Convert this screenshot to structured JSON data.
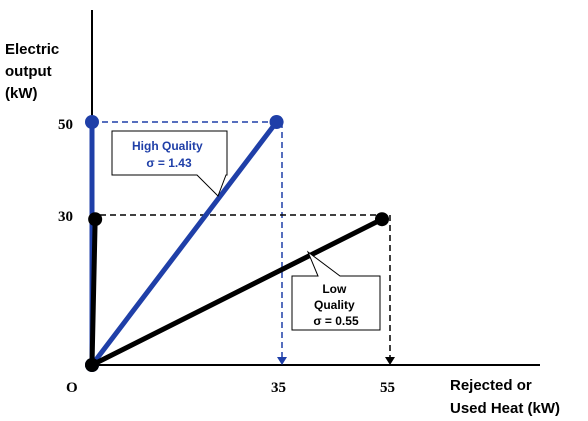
{
  "chart_data": {
    "type": "line",
    "ylabel": [
      "Electric",
      "output",
      "(kW)"
    ],
    "xlabel": [
      "Rejected or",
      "Used Heat (kW)"
    ],
    "origin_label": "O",
    "x_ticks": [
      35,
      55
    ],
    "y_ticks": [
      50,
      30
    ],
    "series": [
      {
        "color": "#1f3fa8",
        "points": [
          [
            0,
            0
          ],
          [
            0,
            50
          ],
          [
            35,
            50
          ]
        ],
        "callout": [
          "High Quality",
          "σ = 1.43"
        ],
        "callout_color": "#1f3fa8"
      },
      {
        "color": "#000000",
        "points": [
          [
            0,
            0
          ],
          [
            0.6,
            30
          ],
          [
            55,
            30
          ]
        ],
        "callout": [
          "Low",
          "Quality",
          "σ = 0.55"
        ],
        "callout_color": "#000000"
      }
    ]
  }
}
